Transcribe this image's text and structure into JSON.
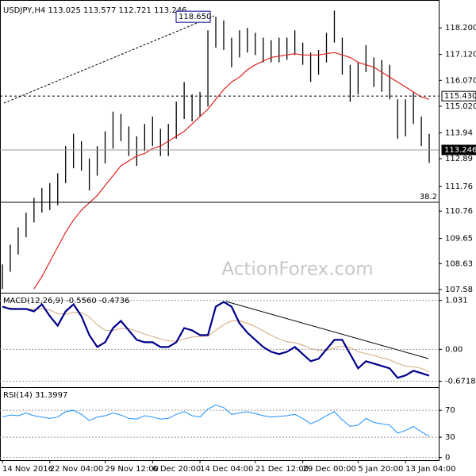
{
  "chart_data": [
    {
      "type": "ohlc",
      "title": "USDJPY,H4  113.025 113.577 112.721 113.246",
      "xlim": [
        -0.3,
        55.2
      ],
      "ylim": [
        107.48,
        119.17
      ],
      "yticks": [
        {
          "value": 118.2,
          "label": "118.200"
        },
        {
          "value": 117.12,
          "label": "117.120"
        },
        {
          "value": 116.07,
          "label": "116.070"
        },
        {
          "value": 115.02,
          "label": "115.020"
        },
        113.94,
        112.89,
        111.76,
        110.76,
        109.65,
        108.63,
        107.58
      ],
      "color": "#000000",
      "high": [
        108.6,
        109.4,
        110.1,
        110.7,
        111.3,
        111.7,
        111.9,
        112.3,
        113.4,
        113.9,
        113.6,
        112.9,
        113.4,
        114.0,
        114.8,
        114.7,
        114.2,
        113.8,
        114.3,
        114.6,
        114.1,
        114.3,
        115.2,
        116.0,
        115.5,
        115.6,
        118.1,
        118.65,
        118.5,
        117.8,
        118.1,
        118.2,
        118.0,
        117.8,
        117.7,
        117.8,
        117.8,
        118.1,
        117.6,
        117.2,
        117.3,
        118.0,
        118.9,
        117.8,
        116.7,
        116.8,
        117.5,
        117.0,
        116.9,
        116.7,
        115.3,
        115.3,
        115.6,
        114.6,
        113.9
      ],
      "low": [
        107.6,
        108.3,
        109.0,
        109.7,
        110.3,
        110.7,
        110.8,
        111.0,
        111.9,
        112.5,
        112.4,
        111.6,
        112.2,
        112.7,
        113.3,
        113.6,
        113.0,
        112.6,
        113.2,
        113.4,
        113.0,
        113.0,
        113.7,
        114.5,
        114.4,
        114.6,
        115.0,
        117.4,
        117.3,
        116.6,
        117.0,
        117.2,
        117.1,
        116.8,
        116.8,
        116.8,
        116.9,
        117.1,
        116.7,
        116.0,
        116.3,
        116.8,
        117.6,
        116.3,
        115.2,
        115.5,
        116.4,
        115.8,
        115.6,
        115.3,
        113.7,
        113.8,
        114.3,
        113.4,
        112.72
      ],
      "ma": {
        "color": "#e0201b",
        "values": [
          null,
          null,
          null,
          null,
          107.6,
          108.1,
          108.7,
          109.3,
          109.9,
          110.4,
          110.8,
          111.1,
          111.4,
          111.8,
          112.2,
          112.6,
          112.8,
          113.0,
          113.1,
          113.3,
          113.4,
          113.6,
          113.8,
          114.0,
          114.3,
          114.6,
          114.9,
          115.3,
          115.7,
          116.0,
          116.2,
          116.5,
          116.7,
          116.85,
          117.0,
          117.05,
          117.1,
          117.15,
          117.1,
          117.1,
          117.1,
          117.15,
          117.2,
          117.1,
          117.0,
          116.8,
          116.7,
          116.6,
          116.4,
          116.2,
          116.0,
          115.8,
          115.6,
          115.4,
          115.3
        ]
      },
      "levels": [
        {
          "value": 115.43,
          "label": "115.430",
          "style": "dashed"
        },
        {
          "value": 113.246,
          "label": "113.246",
          "style": "current"
        },
        {
          "name": "38.2",
          "value": 111.12,
          "style": "fib"
        }
      ],
      "high_marker": {
        "value": 118.65,
        "label": "118.650"
      },
      "watermark": "ActionForex.com"
    },
    {
      "type": "macd",
      "title": "MACD(12,26,9) -0.5560 -0.4736",
      "xlim": [
        -0.3,
        55.2
      ],
      "ylim": [
        -0.78,
        1.16
      ],
      "yticks": [
        1.031,
        {
          "value": 0,
          "label": "0.00"
        },
        -0.6718
      ],
      "macd": {
        "color": "#00008b",
        "values": [
          0.9,
          0.85,
          0.85,
          0.85,
          0.8,
          0.95,
          0.7,
          0.5,
          0.8,
          0.95,
          0.7,
          0.3,
          0.05,
          0.15,
          0.45,
          0.6,
          0.4,
          0.2,
          0.15,
          0.15,
          0.05,
          0.05,
          0.15,
          0.45,
          0.4,
          0.3,
          0.3,
          0.9,
          1.0,
          0.9,
          0.55,
          0.35,
          0.2,
          0.05,
          -0.05,
          -0.1,
          -0.05,
          0.05,
          -0.1,
          -0.25,
          -0.2,
          0.0,
          0.2,
          0.2,
          -0.1,
          -0.4,
          -0.25,
          -0.3,
          -0.35,
          -0.4,
          -0.6,
          -0.55,
          -0.45,
          -0.5,
          -0.556
        ]
      },
      "signal": {
        "color": "#d2a679",
        "values": [
          0.88,
          0.87,
          0.86,
          0.86,
          0.84,
          0.86,
          0.83,
          0.75,
          0.74,
          0.78,
          0.78,
          0.68,
          0.52,
          0.4,
          0.4,
          0.44,
          0.44,
          0.38,
          0.32,
          0.27,
          0.22,
          0.18,
          0.17,
          0.22,
          0.26,
          0.27,
          0.28,
          0.4,
          0.52,
          0.6,
          0.6,
          0.55,
          0.48,
          0.39,
          0.3,
          0.22,
          0.16,
          0.14,
          0.09,
          0.02,
          -0.02,
          -0.02,
          0.03,
          0.07,
          0.04,
          -0.05,
          -0.09,
          -0.13,
          -0.18,
          -0.22,
          -0.3,
          -0.35,
          -0.37,
          -0.4,
          -0.4736
        ]
      }
    },
    {
      "type": "rsi",
      "title": "RSI(14) 31.3997",
      "xlim": [
        -0.3,
        55.2
      ],
      "ylim": [
        -4,
        102
      ],
      "yticks": [
        70,
        30,
        0
      ],
      "color": "#1e90ff",
      "values": [
        60,
        63,
        62,
        66,
        62,
        60,
        58,
        60,
        68,
        70,
        64,
        55,
        60,
        62,
        66,
        63,
        58,
        57,
        62,
        60,
        57,
        58,
        64,
        68,
        62,
        60,
        72,
        78,
        74,
        64,
        66,
        68,
        65,
        62,
        60,
        61,
        62,
        64,
        58,
        50,
        55,
        62,
        68,
        56,
        46,
        48,
        58,
        52,
        50,
        48,
        36,
        40,
        46,
        38,
        31.3997
      ],
      "xticks": [
        {
          "value": 0,
          "label": "14 Nov 2016"
        },
        {
          "value": 6,
          "label": "22 Nov 04:00"
        },
        {
          "value": 13,
          "label": "29 Nov 12:00"
        },
        {
          "value": 19,
          "label": "6 Dec 20:00"
        },
        {
          "value": 25,
          "label": "14 Dec 04:00"
        },
        {
          "value": 32,
          "label": "21 Dec 12:00"
        },
        {
          "value": 38,
          "label": "29 Dec 00:00"
        },
        {
          "value": 45,
          "label": "5 Jan 20:00"
        },
        {
          "value": 51,
          "label": "13 Jan 04:00"
        }
      ]
    }
  ]
}
